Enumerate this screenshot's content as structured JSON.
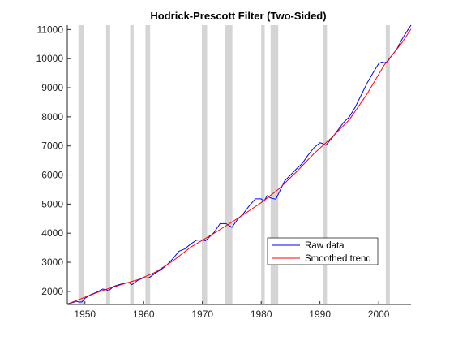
{
  "colors": {
    "raw": "#0000ff",
    "trend": "#ff0000",
    "recession": "#d5d5d5",
    "axis": "#262626",
    "background": "#ffffff"
  },
  "chart_data": {
    "type": "line",
    "title": "Hodrick-Prescott  Filter  (Two-Sided)",
    "xlabel": "",
    "ylabel": "",
    "xlim": [
      1947,
      2005.5
    ],
    "ylim": [
      1550,
      11150
    ],
    "xticks": [
      1950,
      1960,
      1970,
      1980,
      1990,
      2000
    ],
    "yticks": [
      2000,
      3000,
      4000,
      5000,
      6000,
      7000,
      8000,
      9000,
      10000,
      11000
    ],
    "grid": false,
    "legend": {
      "placement": "bottom-right",
      "entries": [
        "Raw data",
        "Smoothed trend"
      ]
    },
    "recession_bands": [
      [
        1948.9,
        1949.8
      ],
      [
        1953.6,
        1954.3
      ],
      [
        1957.7,
        1958.3
      ],
      [
        1960.3,
        1961.1
      ],
      [
        1969.9,
        1970.8
      ],
      [
        1973.9,
        1975.1
      ],
      [
        1980.0,
        1980.6
      ],
      [
        1981.6,
        1982.9
      ],
      [
        1990.6,
        1991.2
      ],
      [
        2001.2,
        2001.9
      ]
    ],
    "series": [
      {
        "name": "Raw data",
        "x": [
          1947,
          1948,
          1948.5,
          1949,
          1949.5,
          1950,
          1951,
          1952,
          1953,
          1953.6,
          1954,
          1955,
          1956,
          1957,
          1957.5,
          1958,
          1959,
          1960,
          1960.5,
          1961,
          1962,
          1963,
          1964,
          1965,
          1966,
          1967,
          1968,
          1969,
          1970,
          1970.5,
          1971,
          1972,
          1973,
          1974,
          1974.5,
          1975,
          1976,
          1977,
          1978,
          1979,
          1980,
          1980.5,
          1981,
          1981.5,
          1982,
          1982.5,
          1983,
          1984,
          1985,
          1986,
          1987,
          1988,
          1989,
          1990,
          1990.5,
          1991,
          1992,
          1993,
          1994,
          1995,
          1996,
          1997,
          1998,
          1999,
          2000,
          2000.5,
          2001,
          2001.5,
          2002,
          2003,
          2004,
          2005,
          2005.5
        ],
        "y": [
          1570,
          1620,
          1660,
          1630,
          1640,
          1760,
          1890,
          1970,
          2080,
          2060,
          2020,
          2180,
          2240,
          2290,
          2300,
          2230,
          2380,
          2470,
          2460,
          2480,
          2630,
          2750,
          2920,
          3130,
          3380,
          3460,
          3630,
          3760,
          3770,
          3740,
          3830,
          4030,
          4330,
          4330,
          4270,
          4200,
          4480,
          4680,
          4950,
          5180,
          5180,
          5100,
          5290,
          5220,
          5190,
          5170,
          5380,
          5800,
          6000,
          6210,
          6400,
          6690,
          6940,
          7110,
          7080,
          7020,
          7260,
          7530,
          7800,
          8000,
          8330,
          8740,
          9150,
          9500,
          9830,
          9880,
          9860,
          9900,
          10050,
          10300,
          10680,
          11000,
          11150
        ]
      },
      {
        "name": "Smoothed trend",
        "x": [
          1947,
          1950,
          1953,
          1956,
          1959,
          1962,
          1965,
          1968,
          1971,
          1974,
          1977,
          1980,
          1983,
          1986,
          1989,
          1992,
          1995,
          1998,
          2001,
          2004,
          2005.5
        ],
        "y": [
          1560,
          1800,
          2030,
          2220,
          2400,
          2660,
          3050,
          3520,
          3880,
          4250,
          4640,
          5050,
          5520,
          6110,
          6740,
          7290,
          7900,
          8780,
          9800,
          10560,
          11020
        ]
      }
    ]
  }
}
